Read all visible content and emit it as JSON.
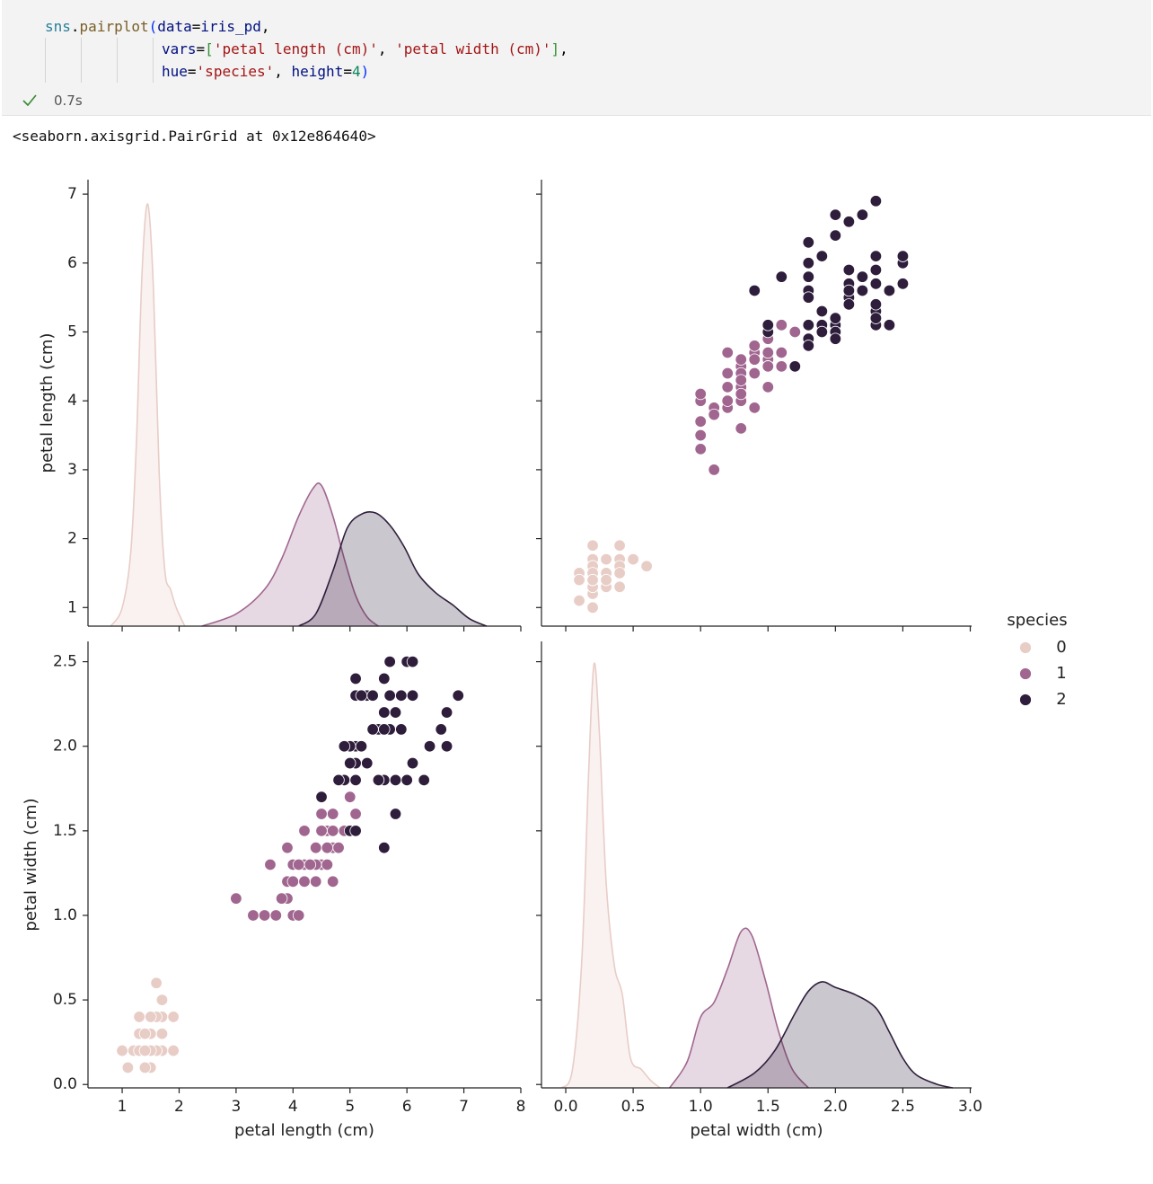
{
  "cell": {
    "code": [
      [
        {
          "text": "sns",
          "color": "#267f99"
        },
        {
          "text": ".",
          "color": "#000000"
        },
        {
          "text": "pairplot",
          "color": "#795e26"
        },
        {
          "text": "(",
          "color": "#0431fa"
        },
        {
          "text": "data",
          "color": "#001080"
        },
        {
          "text": "=",
          "color": "#000000"
        },
        {
          "text": "iris_pd",
          "color": "#001080"
        },
        {
          "text": ",",
          "color": "#000000"
        }
      ],
      [
        {
          "text": "vars",
          "color": "#001080"
        },
        {
          "text": "=",
          "color": "#000000"
        },
        {
          "text": "[",
          "color": "#319331"
        },
        {
          "text": "'petal length (cm)'",
          "color": "#a31515"
        },
        {
          "text": ", ",
          "color": "#000000"
        },
        {
          "text": "'petal width (cm)'",
          "color": "#a31515"
        },
        {
          "text": "]",
          "color": "#319331"
        },
        {
          "text": ",",
          "color": "#000000"
        }
      ],
      [
        {
          "text": "hue",
          "color": "#001080"
        },
        {
          "text": "=",
          "color": "#000000"
        },
        {
          "text": "'species'",
          "color": "#a31515"
        },
        {
          "text": ", ",
          "color": "#000000"
        },
        {
          "text": "height",
          "color": "#001080"
        },
        {
          "text": "=",
          "color": "#000000"
        },
        {
          "text": "4",
          "color": "#098658"
        },
        {
          "text": ")",
          "color": "#0431fa"
        }
      ]
    ],
    "status": "0.7s",
    "output": "<seaborn.axisgrid.PairGrid at 0x12e864640>"
  },
  "chart_data": {
    "type": "pairplot",
    "hue": "species",
    "variables": [
      {
        "label": "petal length (cm)",
        "xlim": [
          0.4,
          8.0
        ],
        "ylim": [
          0.73,
          7.21
        ],
        "xticks": [
          1,
          2,
          3,
          4,
          5,
          6,
          7,
          8
        ],
        "yticks": [
          1,
          2,
          3,
          4,
          5,
          6,
          7
        ],
        "density_lim": [
          0,
          0.73
        ]
      },
      {
        "label": "petal width (cm)",
        "xlim": [
          -0.18,
          3.01
        ],
        "ylim": [
          -0.02,
          2.62
        ],
        "xticks": [
          {
            "value": 0,
            "label": "0.0"
          },
          {
            "value": 0.5,
            "label": "0.5"
          },
          {
            "value": 1,
            "label": "1.0"
          },
          {
            "value": 1.5,
            "label": "1.5"
          },
          {
            "value": 2,
            "label": "2.0"
          },
          {
            "value": 2.5,
            "label": "2.5"
          },
          {
            "value": 3,
            "label": "3.0"
          }
        ],
        "yticks": [
          {
            "value": 0,
            "label": "0.0"
          },
          {
            "value": 0.5,
            "label": "0.5"
          },
          {
            "value": 1,
            "label": "1.0"
          },
          {
            "value": 1.5,
            "label": "1.5"
          },
          {
            "value": 2,
            "label": "2.0"
          },
          {
            "value": 2.5,
            "label": "2.5"
          }
        ],
        "density_lim": [
          0,
          1.2
        ]
      }
    ],
    "series": [
      {
        "name": "0",
        "color": "#e8cdc6",
        "columns": [
          [
            1.4,
            1.4,
            1.3,
            1.5,
            1.4,
            1.7,
            1.4,
            1.5,
            1.4,
            1.5,
            1.5,
            1.6,
            1.4,
            1.1,
            1.2,
            1.5,
            1.3,
            1.4,
            1.7,
            1.5,
            1.7,
            1.5,
            1.0,
            1.7,
            1.9,
            1.6,
            1.6,
            1.5,
            1.4,
            1.6,
            1.6,
            1.5,
            1.5,
            1.4,
            1.5,
            1.2,
            1.3,
            1.4,
            1.3,
            1.5,
            1.3,
            1.3,
            1.3,
            1.6,
            1.9,
            1.4,
            1.6,
            1.4,
            1.5,
            1.4
          ],
          [
            0.2,
            0.2,
            0.2,
            0.2,
            0.2,
            0.4,
            0.3,
            0.2,
            0.2,
            0.1,
            0.2,
            0.2,
            0.1,
            0.1,
            0.2,
            0.4,
            0.4,
            0.3,
            0.3,
            0.3,
            0.2,
            0.4,
            0.2,
            0.5,
            0.2,
            0.2,
            0.4,
            0.2,
            0.2,
            0.2,
            0.2,
            0.4,
            0.1,
            0.2,
            0.2,
            0.2,
            0.2,
            0.1,
            0.2,
            0.2,
            0.3,
            0.3,
            0.2,
            0.6,
            0.4,
            0.3,
            0.2,
            0.2,
            0.2,
            0.2
          ]
        ],
        "kde": [
          {
            "x": [
              0.8,
              1.0,
              1.15,
              1.25,
              1.35,
              1.45,
              1.55,
              1.65,
              1.75,
              1.85,
              1.95,
              2.1
            ],
            "values": [
              0,
              0.03,
              0.12,
              0.3,
              0.58,
              0.69,
              0.55,
              0.25,
              0.09,
              0.06,
              0.03,
              0
            ]
          },
          {
            "x": [
              -0.03,
              0.05,
              0.12,
              0.17,
              0.21,
              0.25,
              0.3,
              0.36,
              0.42,
              0.48,
              0.56,
              0.63,
              0.7
            ],
            "values": [
              0,
              0.05,
              0.35,
              0.85,
              1.14,
              0.95,
              0.55,
              0.33,
              0.25,
              0.08,
              0.05,
              0.02,
              0
            ]
          }
        ]
      },
      {
        "name": "1",
        "color": "#a0668f",
        "columns": [
          [
            4.7,
            4.5,
            4.9,
            4.0,
            4.6,
            4.5,
            4.7,
            3.3,
            4.6,
            3.9,
            3.5,
            4.2,
            4.0,
            4.7,
            3.6,
            4.4,
            4.5,
            4.1,
            4.5,
            3.9,
            4.8,
            4.0,
            4.9,
            4.7,
            4.3,
            4.4,
            4.8,
            5.0,
            4.5,
            3.5,
            3.8,
            3.7,
            3.9,
            5.1,
            4.5,
            4.5,
            4.7,
            4.4,
            4.1,
            4.0,
            4.4,
            4.6,
            4.0,
            3.3,
            4.2,
            4.2,
            4.2,
            4.3,
            3.0,
            4.1
          ],
          [
            1.4,
            1.5,
            1.5,
            1.3,
            1.5,
            1.3,
            1.6,
            1.0,
            1.3,
            1.4,
            1.0,
            1.5,
            1.0,
            1.4,
            1.3,
            1.4,
            1.5,
            1.0,
            1.5,
            1.1,
            1.8,
            1.3,
            1.5,
            1.2,
            1.3,
            1.4,
            1.4,
            1.7,
            1.5,
            1.0,
            1.1,
            1.0,
            1.2,
            1.6,
            1.5,
            1.6,
            1.5,
            1.3,
            1.3,
            1.3,
            1.2,
            1.4,
            1.2,
            1.0,
            1.3,
            1.2,
            1.3,
            1.3,
            1.1,
            1.3
          ]
        ],
        "kde": [
          {
            "x": [
              2.4,
              3.0,
              3.5,
              3.8,
              4.1,
              4.35,
              4.5,
              4.7,
              4.9,
              5.1,
              5.3,
              5.5
            ],
            "values": [
              0,
              0.02,
              0.06,
              0.11,
              0.18,
              0.225,
              0.23,
              0.18,
              0.11,
              0.05,
              0.015,
              0
            ]
          },
          {
            "x": [
              0.77,
              0.9,
              1.0,
              1.1,
              1.2,
              1.3,
              1.38,
              1.48,
              1.58,
              1.68,
              1.8
            ],
            "values": [
              0,
              0.07,
              0.19,
              0.23,
              0.32,
              0.42,
              0.41,
              0.29,
              0.15,
              0.05,
              0
            ]
          }
        ]
      },
      {
        "name": "2",
        "color": "#2e1e3c",
        "columns": [
          [
            6.0,
            5.1,
            5.9,
            5.6,
            5.8,
            6.6,
            4.5,
            6.3,
            5.8,
            6.1,
            5.1,
            5.3,
            5.5,
            5.0,
            5.1,
            5.3,
            5.5,
            6.7,
            6.9,
            5.0,
            5.7,
            4.9,
            6.7,
            4.9,
            5.7,
            6.0,
            4.8,
            4.9,
            5.6,
            5.8,
            6.1,
            6.4,
            5.6,
            5.1,
            5.6,
            6.1,
            5.6,
            5.5,
            4.8,
            5.4,
            5.6,
            5.1,
            5.1,
            5.9,
            5.7,
            5.2,
            5.0,
            5.2,
            5.4,
            5.1
          ],
          [
            2.5,
            1.9,
            2.1,
            1.8,
            2.2,
            2.1,
            1.7,
            1.8,
            1.8,
            2.5,
            2.0,
            1.9,
            2.1,
            2.0,
            2.4,
            2.3,
            1.8,
            2.2,
            2.3,
            1.5,
            2.3,
            2.0,
            2.0,
            1.8,
            2.1,
            1.8,
            1.8,
            1.8,
            2.1,
            1.6,
            1.9,
            2.0,
            2.2,
            1.5,
            1.4,
            2.3,
            2.4,
            1.8,
            1.8,
            2.1,
            2.4,
            2.3,
            1.9,
            2.3,
            2.5,
            2.3,
            1.9,
            2.0,
            2.3,
            1.8
          ]
        ],
        "kde": [
          {
            "x": [
              4.1,
              4.4,
              4.7,
              4.95,
              5.2,
              5.45,
              5.7,
              5.95,
              6.2,
              6.5,
              6.8,
              7.1,
              7.4
            ],
            "values": [
              0,
              0.02,
              0.09,
              0.16,
              0.183,
              0.185,
              0.165,
              0.13,
              0.085,
              0.055,
              0.035,
              0.012,
              0
            ]
          },
          {
            "x": [
              1.2,
              1.4,
              1.55,
              1.7,
              1.8,
              1.9,
              2.0,
              2.15,
              2.3,
              2.4,
              2.5,
              2.6,
              2.75,
              2.87
            ],
            "values": [
              0,
              0.04,
              0.1,
              0.2,
              0.26,
              0.285,
              0.27,
              0.25,
              0.215,
              0.15,
              0.08,
              0.035,
              0.01,
              0
            ]
          }
        ]
      }
    ]
  }
}
